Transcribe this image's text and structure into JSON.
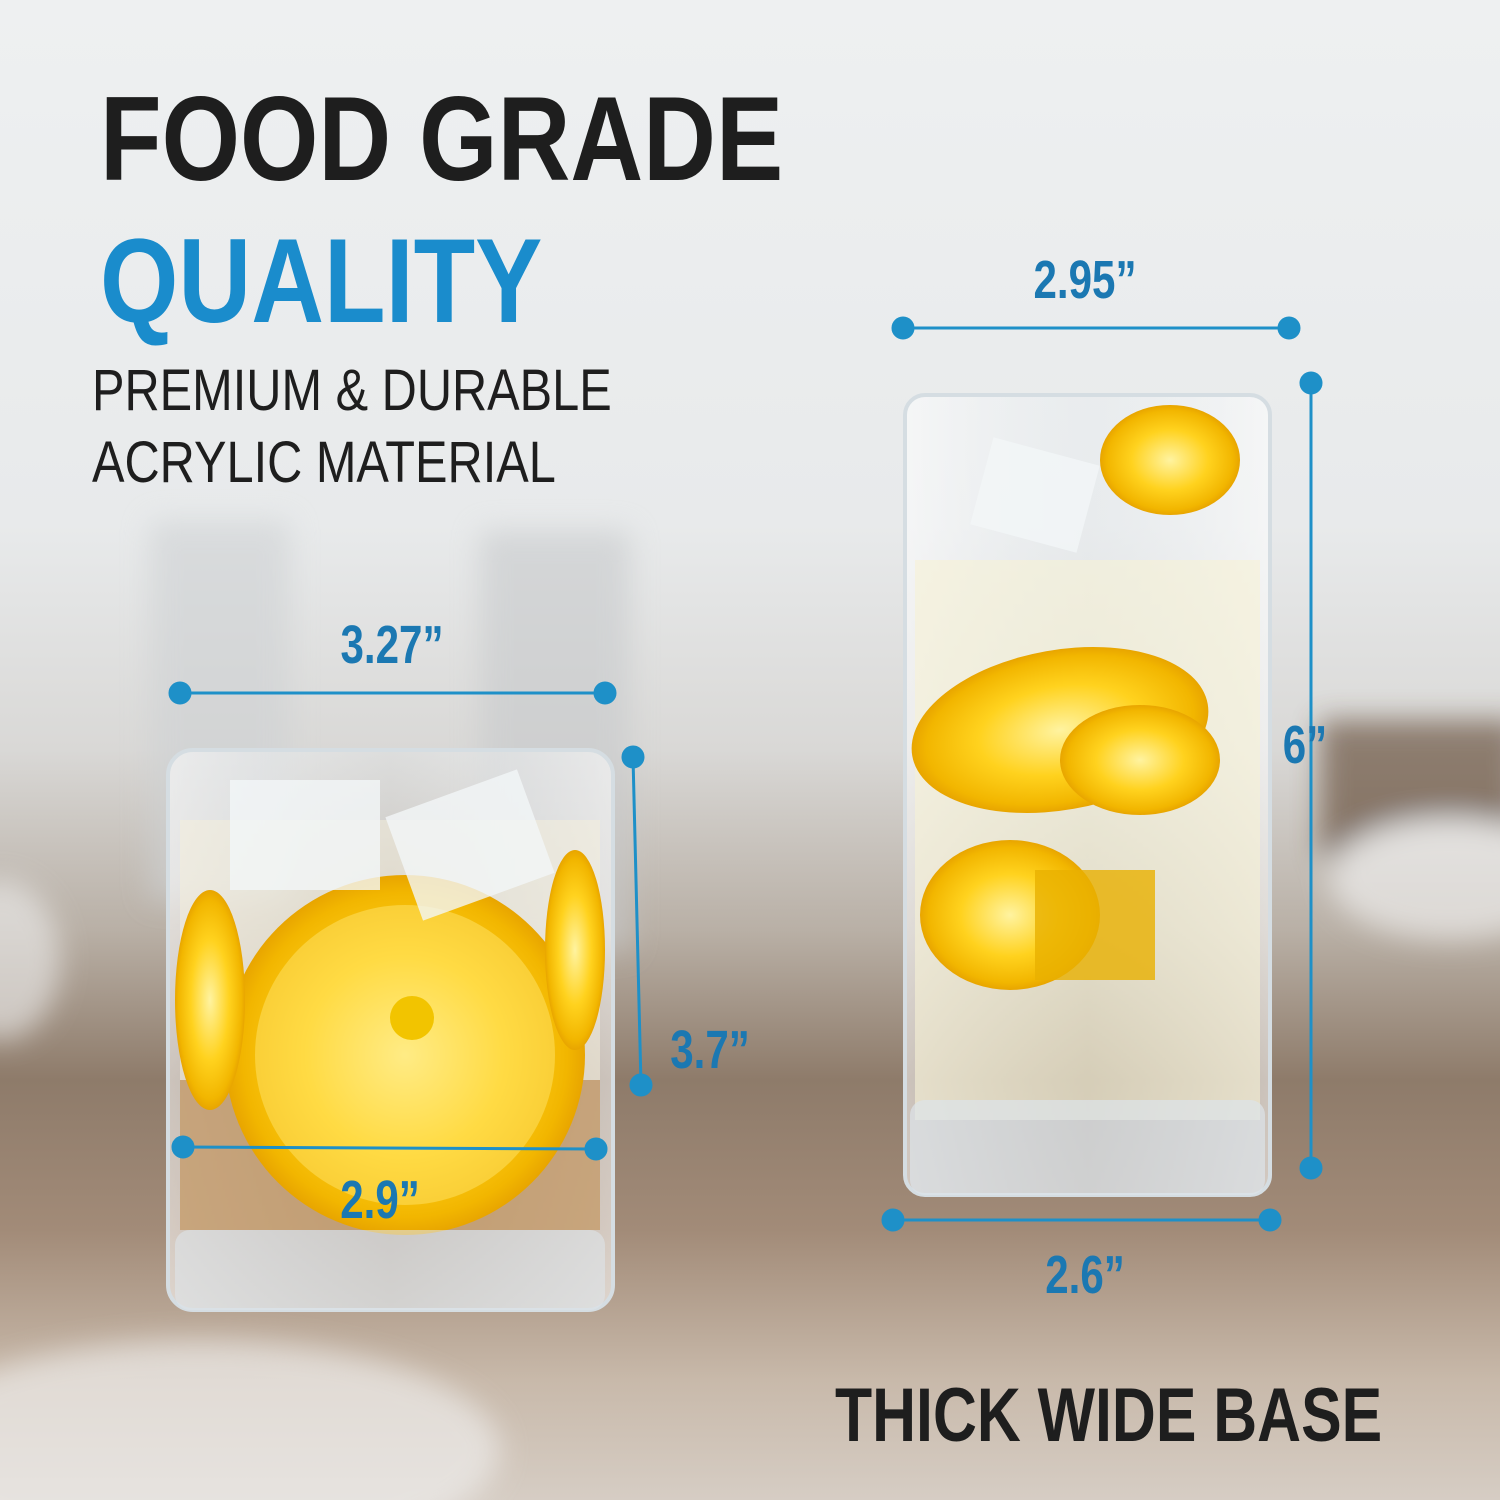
{
  "headline": {
    "line1": "FOOD GRADE",
    "line2": "QUALITY"
  },
  "subheadline": {
    "line1": "PREMIUM & DURABLE",
    "line2": "ACRYLIC MATERIAL"
  },
  "tall_glass": {
    "top_width": "2.95”",
    "height": "6”",
    "base_width": "2.6”"
  },
  "short_glass": {
    "top_width": "3.27”",
    "height": "3.7”",
    "base_width": "2.9”"
  },
  "caption": "THICK WIDE BASE",
  "colors": {
    "accent": "#1a8ccc",
    "dimension_text": "#1b78b2",
    "dimension_line": "#1e90c8",
    "heading": "#1e1e1e"
  }
}
